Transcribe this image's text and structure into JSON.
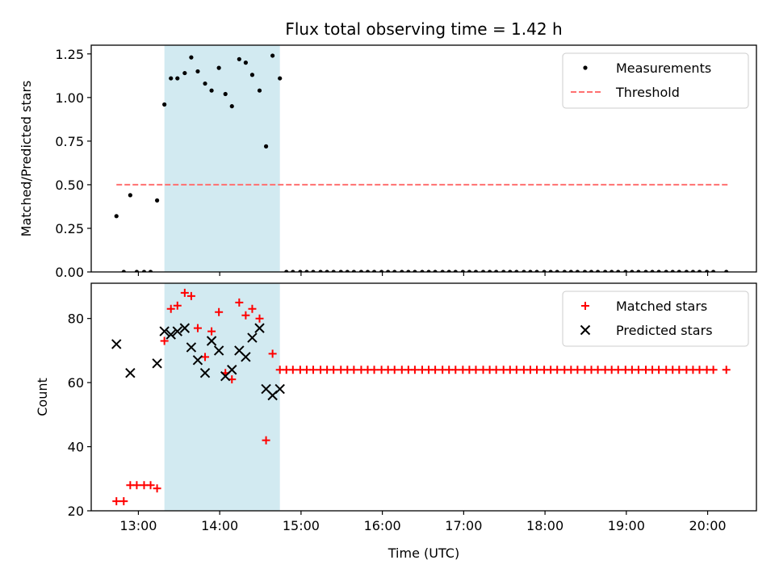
{
  "chart_data": {
    "type": "scatter",
    "title": "Flux total observing time = 1.42 h",
    "xlabel": "Time (UTC)",
    "x_units": "hours UTC",
    "xlim": [
      12.42,
      20.6
    ],
    "x_ticks": [
      13,
      14,
      15,
      16,
      17,
      18,
      19,
      20
    ],
    "x_tick_labels": [
      "13:00",
      "14:00",
      "15:00",
      "16:00",
      "17:00",
      "18:00",
      "19:00",
      "20:00"
    ],
    "colors": {
      "measurements": "#000000",
      "threshold": "#ff7070",
      "matched": "#ff0000",
      "predicted": "#000000",
      "span": "#add8e6"
    },
    "highlight_span": {
      "x0": 13.32,
      "x1": 14.74
    },
    "panels": [
      {
        "ylabel": "Matched/Predicted stars",
        "ylim": [
          0,
          1.3
        ],
        "y_ticks": [
          0,
          0.25,
          0.5,
          0.75,
          1.0,
          1.25
        ],
        "y_tick_labels": [
          "0.00",
          "0.25",
          "0.50",
          "0.75",
          "1.00",
          "1.25"
        ],
        "legend": [
          "Measurements",
          "Threshold"
        ],
        "threshold": {
          "name": "Threshold",
          "value": 0.5,
          "x_range": [
            12.73,
            20.25
          ]
        },
        "series": [
          {
            "name": "Measurements",
            "marker": "dot",
            "points": [
              [
                12.73,
                0.32
              ],
              [
                12.82,
                0.0
              ],
              [
                12.9,
                0.44
              ],
              [
                12.98,
                0.0
              ],
              [
                13.07,
                0.0
              ],
              [
                13.15,
                0.0
              ],
              [
                13.23,
                0.41
              ],
              [
                13.32,
                0.96
              ],
              [
                13.4,
                1.11
              ],
              [
                13.48,
                1.11
              ],
              [
                13.57,
                1.14
              ],
              [
                13.65,
                1.23
              ],
              [
                13.73,
                1.15
              ],
              [
                13.82,
                1.08
              ],
              [
                13.9,
                1.04
              ],
              [
                13.99,
                1.17
              ],
              [
                14.07,
                1.02
              ],
              [
                14.15,
                0.95
              ],
              [
                14.24,
                1.22
              ],
              [
                14.32,
                1.2
              ],
              [
                14.4,
                1.13
              ],
              [
                14.49,
                1.04
              ],
              [
                14.57,
                0.72
              ],
              [
                14.65,
                1.24
              ],
              [
                14.74,
                1.11
              ],
              [
                14.82,
                0.0
              ],
              [
                14.9,
                0.0
              ],
              [
                14.99,
                0.0
              ],
              [
                15.07,
                0.0
              ],
              [
                15.15,
                0.0
              ],
              [
                15.24,
                0.0
              ],
              [
                15.32,
                0.0
              ],
              [
                15.4,
                0.0
              ],
              [
                15.49,
                0.0
              ],
              [
                15.57,
                0.0
              ],
              [
                15.65,
                0.0
              ],
              [
                15.74,
                0.0
              ],
              [
                15.82,
                0.0
              ],
              [
                15.9,
                0.0
              ],
              [
                15.99,
                0.0
              ],
              [
                16.07,
                0.0
              ],
              [
                16.15,
                0.0
              ],
              [
                16.24,
                0.0
              ],
              [
                16.32,
                0.0
              ],
              [
                16.4,
                0.0
              ],
              [
                16.49,
                0.0
              ],
              [
                16.57,
                0.0
              ],
              [
                16.65,
                0.0
              ],
              [
                16.74,
                0.0
              ],
              [
                16.82,
                0.0
              ],
              [
                16.9,
                0.0
              ],
              [
                16.99,
                0.0
              ],
              [
                17.07,
                0.0
              ],
              [
                17.15,
                0.0
              ],
              [
                17.24,
                0.0
              ],
              [
                17.32,
                0.0
              ],
              [
                17.4,
                0.0
              ],
              [
                17.49,
                0.0
              ],
              [
                17.57,
                0.0
              ],
              [
                17.65,
                0.0
              ],
              [
                17.74,
                0.0
              ],
              [
                17.82,
                0.0
              ],
              [
                17.9,
                0.0
              ],
              [
                17.99,
                0.0
              ],
              [
                18.07,
                0.0
              ],
              [
                18.15,
                0.0
              ],
              [
                18.24,
                0.0
              ],
              [
                18.32,
                0.0
              ],
              [
                18.4,
                0.0
              ],
              [
                18.49,
                0.0
              ],
              [
                18.57,
                0.0
              ],
              [
                18.65,
                0.0
              ],
              [
                18.74,
                0.0
              ],
              [
                18.82,
                0.0
              ],
              [
                18.9,
                0.0
              ],
              [
                18.99,
                0.0
              ],
              [
                19.07,
                0.0
              ],
              [
                19.15,
                0.0
              ],
              [
                19.24,
                0.0
              ],
              [
                19.32,
                0.0
              ],
              [
                19.4,
                0.0
              ],
              [
                19.49,
                0.0
              ],
              [
                19.57,
                0.0
              ],
              [
                19.65,
                0.0
              ],
              [
                19.74,
                0.0
              ],
              [
                19.82,
                0.0
              ],
              [
                19.9,
                0.0
              ],
              [
                19.99,
                0.0
              ],
              [
                20.07,
                0.0
              ],
              [
                20.23,
                0.0
              ]
            ]
          }
        ]
      },
      {
        "ylabel": "Count",
        "ylim": [
          20,
          91
        ],
        "y_ticks": [
          20,
          40,
          60,
          80
        ],
        "y_tick_labels": [
          "20",
          "40",
          "60",
          "80"
        ],
        "legend": [
          "Matched stars",
          "Predicted stars"
        ],
        "series": [
          {
            "name": "Matched stars",
            "marker": "plus",
            "points": [
              [
                12.73,
                23
              ],
              [
                12.82,
                23
              ],
              [
                12.9,
                28
              ],
              [
                12.98,
                28
              ],
              [
                13.07,
                28
              ],
              [
                13.15,
                28
              ],
              [
                13.23,
                27
              ],
              [
                13.32,
                73
              ],
              [
                13.4,
                83
              ],
              [
                13.48,
                84
              ],
              [
                13.57,
                88
              ],
              [
                13.65,
                87
              ],
              [
                13.73,
                77
              ],
              [
                13.82,
                68
              ],
              [
                13.9,
                76
              ],
              [
                13.99,
                82
              ],
              [
                14.07,
                63
              ],
              [
                14.15,
                61
              ],
              [
                14.24,
                85
              ],
              [
                14.32,
                81
              ],
              [
                14.4,
                83
              ],
              [
                14.49,
                80
              ],
              [
                14.57,
                42
              ],
              [
                14.65,
                69
              ],
              [
                14.74,
                64
              ],
              [
                14.82,
                64
              ],
              [
                14.9,
                64
              ],
              [
                14.99,
                64
              ],
              [
                15.07,
                64
              ],
              [
                15.15,
                64
              ],
              [
                15.24,
                64
              ],
              [
                15.32,
                64
              ],
              [
                15.4,
                64
              ],
              [
                15.49,
                64
              ],
              [
                15.57,
                64
              ],
              [
                15.65,
                64
              ],
              [
                15.74,
                64
              ],
              [
                15.82,
                64
              ],
              [
                15.9,
                64
              ],
              [
                15.99,
                64
              ],
              [
                16.07,
                64
              ],
              [
                16.15,
                64
              ],
              [
                16.24,
                64
              ],
              [
                16.32,
                64
              ],
              [
                16.4,
                64
              ],
              [
                16.49,
                64
              ],
              [
                16.57,
                64
              ],
              [
                16.65,
                64
              ],
              [
                16.74,
                64
              ],
              [
                16.82,
                64
              ],
              [
                16.9,
                64
              ],
              [
                16.99,
                64
              ],
              [
                17.07,
                64
              ],
              [
                17.15,
                64
              ],
              [
                17.24,
                64
              ],
              [
                17.32,
                64
              ],
              [
                17.4,
                64
              ],
              [
                17.49,
                64
              ],
              [
                17.57,
                64
              ],
              [
                17.65,
                64
              ],
              [
                17.74,
                64
              ],
              [
                17.82,
                64
              ],
              [
                17.9,
                64
              ],
              [
                17.99,
                64
              ],
              [
                18.07,
                64
              ],
              [
                18.15,
                64
              ],
              [
                18.24,
                64
              ],
              [
                18.32,
                64
              ],
              [
                18.4,
                64
              ],
              [
                18.49,
                64
              ],
              [
                18.57,
                64
              ],
              [
                18.65,
                64
              ],
              [
                18.74,
                64
              ],
              [
                18.82,
                64
              ],
              [
                18.9,
                64
              ],
              [
                18.99,
                64
              ],
              [
                19.07,
                64
              ],
              [
                19.15,
                64
              ],
              [
                19.24,
                64
              ],
              [
                19.32,
                64
              ],
              [
                19.4,
                64
              ],
              [
                19.49,
                64
              ],
              [
                19.57,
                64
              ],
              [
                19.65,
                64
              ],
              [
                19.74,
                64
              ],
              [
                19.82,
                64
              ],
              [
                19.9,
                64
              ],
              [
                19.99,
                64
              ],
              [
                20.07,
                64
              ],
              [
                20.23,
                64
              ]
            ]
          },
          {
            "name": "Predicted stars",
            "marker": "x",
            "points": [
              [
                12.73,
                72
              ],
              [
                12.9,
                63
              ],
              [
                13.23,
                66
              ],
              [
                13.32,
                76
              ],
              [
                13.4,
                75
              ],
              [
                13.48,
                76
              ],
              [
                13.57,
                77
              ],
              [
                13.65,
                71
              ],
              [
                13.73,
                67
              ],
              [
                13.82,
                63
              ],
              [
                13.9,
                73
              ],
              [
                13.99,
                70
              ],
              [
                14.07,
                62
              ],
              [
                14.15,
                64
              ],
              [
                14.24,
                70
              ],
              [
                14.32,
                68
              ],
              [
                14.4,
                74
              ],
              [
                14.49,
                77
              ],
              [
                14.57,
                58
              ],
              [
                14.65,
                56
              ],
              [
                14.74,
                58
              ]
            ]
          }
        ]
      }
    ]
  }
}
